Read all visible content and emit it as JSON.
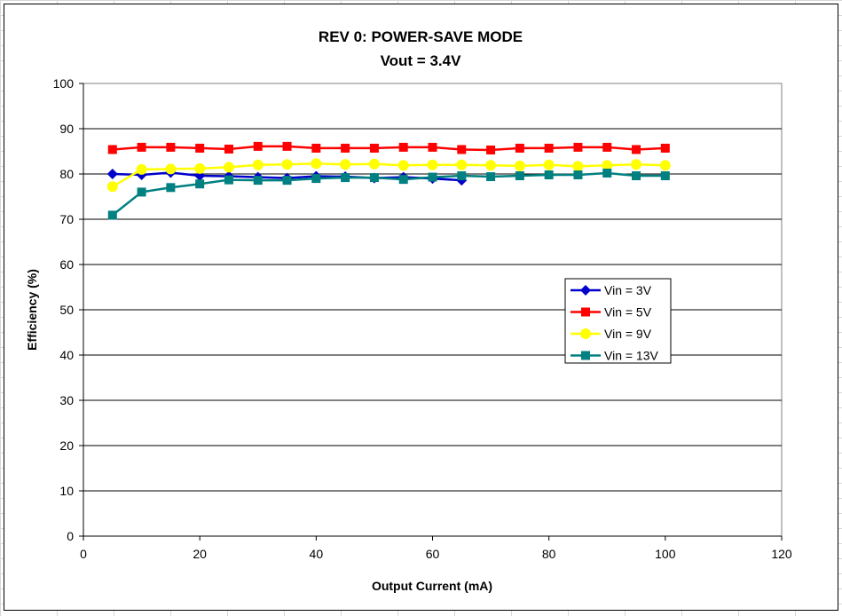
{
  "chart_data": {
    "type": "line",
    "title": "REV 0: POWER-SAVE MODE",
    "subtitle": "Vout = 3.4V",
    "xlabel": "Output Current (mA)",
    "ylabel": "Efficiency (%)",
    "xlim": [
      0,
      120
    ],
    "ylim": [
      0,
      100
    ],
    "xticks": [
      0,
      20,
      40,
      60,
      80,
      100,
      120
    ],
    "yticks": [
      0,
      10,
      20,
      30,
      40,
      50,
      60,
      70,
      80,
      90,
      100
    ],
    "grid": "horizontal",
    "legend_position": "right",
    "series": [
      {
        "name": "Vin = 3V",
        "color": "#0000CC",
        "marker": "diamond",
        "x": [
          5,
          10,
          15,
          20,
          25,
          30,
          35,
          40,
          45,
          50,
          55,
          60,
          65
        ],
        "y": [
          80,
          79.8,
          80.3,
          79.6,
          79.5,
          79.3,
          79.1,
          79.5,
          79.4,
          79.1,
          79.3,
          79,
          78.6
        ]
      },
      {
        "name": "Vin = 5V",
        "color": "#FF0000",
        "marker": "square",
        "x": [
          5,
          10,
          15,
          20,
          25,
          30,
          35,
          40,
          45,
          50,
          55,
          60,
          65,
          70,
          75,
          80,
          85,
          90,
          95,
          100
        ],
        "y": [
          85.4,
          85.9,
          85.9,
          85.7,
          85.5,
          86.1,
          86.1,
          85.7,
          85.7,
          85.7,
          85.9,
          85.9,
          85.4,
          85.3,
          85.7,
          85.7,
          85.9,
          85.9,
          85.4,
          85.7
        ]
      },
      {
        "name": "Vin = 9V",
        "color": "#FFFF00",
        "marker": "circle",
        "x": [
          5,
          10,
          15,
          20,
          25,
          30,
          35,
          40,
          45,
          50,
          55,
          60,
          65,
          70,
          75,
          80,
          85,
          90,
          95,
          100
        ],
        "y": [
          77.2,
          81,
          81.1,
          81.2,
          81.5,
          82,
          82.1,
          82.3,
          82.1,
          82.2,
          81.9,
          82,
          82,
          81.9,
          81.8,
          82,
          81.7,
          81.9,
          82.1,
          81.9
        ]
      },
      {
        "name": "Vin = 13V",
        "color": "#008080",
        "marker": "square",
        "x": [
          5,
          10,
          15,
          20,
          25,
          30,
          35,
          40,
          45,
          50,
          55,
          60,
          65,
          70,
          75,
          80,
          85,
          90,
          95,
          100
        ],
        "y": [
          70.9,
          76,
          77,
          77.8,
          78.7,
          78.6,
          78.6,
          79,
          79.2,
          79.2,
          78.8,
          79.3,
          79.6,
          79.4,
          79.6,
          79.8,
          79.8,
          80.2,
          79.6,
          79.6
        ]
      }
    ]
  }
}
